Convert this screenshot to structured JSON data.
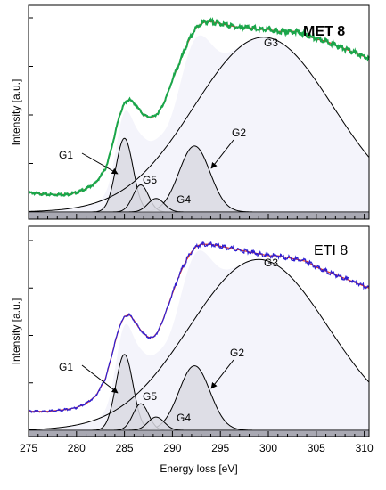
{
  "chart_data": [
    {
      "type": "line",
      "title": "MET 8",
      "ylabel": "Intensity [a.u.]",
      "xlabel": "",
      "xlim": [
        275,
        310.5
      ],
      "ylim": [
        0,
        1
      ],
      "grid": false,
      "data_color": "#1aa64a",
      "fit_color": "#e0301e",
      "envelope_fill": "#f4f4fb",
      "peak_fill": "#d9d9e2",
      "baseline_color": "#a9a9b3",
      "series": [
        {
          "name": "data",
          "x": [
            275,
            277,
            279,
            280,
            281,
            282,
            283,
            283.5,
            284,
            284.5,
            285,
            285.5,
            286,
            286.5,
            287,
            287.5,
            288,
            288.5,
            289,
            289.5,
            290,
            290.5,
            291,
            291.5,
            292,
            292.5,
            293,
            293.5,
            294,
            295,
            296,
            297,
            298,
            299,
            300,
            301,
            302,
            303,
            304,
            305,
            306,
            307,
            308,
            309,
            310,
            310.5
          ],
          "y": [
            0.1,
            0.09,
            0.09,
            0.1,
            0.12,
            0.15,
            0.22,
            0.3,
            0.4,
            0.5,
            0.56,
            0.58,
            0.56,
            0.53,
            0.5,
            0.49,
            0.49,
            0.51,
            0.55,
            0.61,
            0.68,
            0.74,
            0.8,
            0.86,
            0.91,
            0.95,
            0.97,
            0.98,
            0.98,
            0.97,
            0.96,
            0.95,
            0.95,
            0.94,
            0.94,
            0.93,
            0.93,
            0.93,
            0.91,
            0.89,
            0.88,
            0.86,
            0.84,
            0.82,
            0.8,
            0.79
          ]
        }
      ],
      "peaks": [
        {
          "name": "G1",
          "center": 285,
          "fwhm": 2.1,
          "height": 0.38
        },
        {
          "name": "G2",
          "center": 292.3,
          "fwhm": 3.8,
          "height": 0.34
        },
        {
          "name": "G3",
          "center": 299.5,
          "fwhm": 17,
          "height": 0.9
        },
        {
          "name": "G4",
          "center": 286.7,
          "fwhm": 1.9,
          "height": 0.14
        },
        {
          "name": "G5",
          "center": 288.3,
          "fwhm": 2.0,
          "height": 0.07
        }
      ],
      "annotations": [
        "G1",
        "G2",
        "G3",
        "G4",
        "G5"
      ]
    },
    {
      "type": "line",
      "title": "ETI 8",
      "ylabel": "Intensity [a.u.]",
      "xlabel": "Energy loss [eV]",
      "xlim": [
        275,
        310.5
      ],
      "ylim": [
        0,
        1
      ],
      "x_ticks": [
        275,
        280,
        285,
        290,
        295,
        300,
        305,
        310
      ],
      "grid": false,
      "data_color": "#2f1fd2",
      "fit_color": "#e0301e",
      "envelope_fill": "#f4f4fb",
      "peak_fill": "#d9d9e2",
      "baseline_color": "#a9a9b3",
      "series": [
        {
          "name": "data",
          "x": [
            275,
            277,
            279,
            280,
            281,
            282,
            283,
            283.5,
            284,
            284.5,
            285,
            285.5,
            286,
            286.5,
            287,
            287.5,
            288,
            288.5,
            289,
            289.5,
            290,
            290.5,
            291,
            291.5,
            292,
            292.5,
            293,
            293.5,
            294,
            295,
            296,
            297,
            298,
            299,
            300,
            301,
            302,
            303,
            304,
            305,
            306,
            307,
            308,
            309,
            310,
            310.5
          ],
          "y": [
            0.1,
            0.1,
            0.11,
            0.12,
            0.14,
            0.18,
            0.27,
            0.36,
            0.46,
            0.55,
            0.6,
            0.61,
            0.58,
            0.54,
            0.51,
            0.49,
            0.49,
            0.52,
            0.58,
            0.65,
            0.72,
            0.79,
            0.85,
            0.9,
            0.94,
            0.97,
            0.98,
            0.98,
            0.98,
            0.97,
            0.96,
            0.95,
            0.94,
            0.93,
            0.92,
            0.92,
            0.91,
            0.9,
            0.89,
            0.86,
            0.84,
            0.82,
            0.8,
            0.78,
            0.76,
            0.75
          ]
        }
      ],
      "peaks": [
        {
          "name": "G1",
          "center": 285,
          "fwhm": 2.1,
          "height": 0.4
        },
        {
          "name": "G2",
          "center": 292.3,
          "fwhm": 3.8,
          "height": 0.34
        },
        {
          "name": "G3",
          "center": 299,
          "fwhm": 17,
          "height": 0.9
        },
        {
          "name": "G4",
          "center": 286.7,
          "fwhm": 1.9,
          "height": 0.14
        },
        {
          "name": "G5",
          "center": 288.3,
          "fwhm": 2.0,
          "height": 0.07
        }
      ],
      "annotations": [
        "G1",
        "G2",
        "G3",
        "G4",
        "G5"
      ]
    }
  ]
}
